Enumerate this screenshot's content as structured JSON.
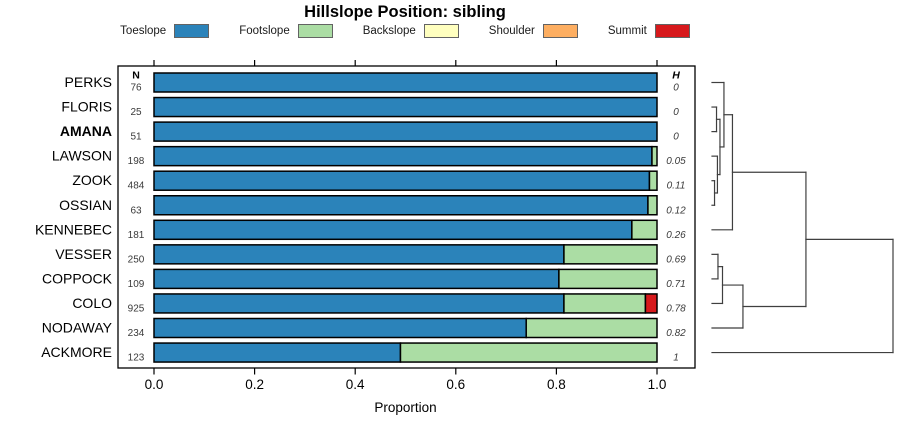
{
  "chart_data": {
    "type": "bar",
    "variant": "horizontal-stacked-proportion",
    "title": "Hillslope Position: sibling",
    "xlabel": "Proportion",
    "xlim": [
      0,
      1
    ],
    "xticks": [
      0.0,
      0.2,
      0.4,
      0.6,
      0.8,
      1.0
    ],
    "xtick_labels": [
      "0.0",
      "0.2",
      "0.4",
      "0.6",
      "0.8",
      "1.0"
    ],
    "grid": "off",
    "legend": {
      "position": "top",
      "entries": [
        {
          "label": "Toeslope",
          "color": "#2b83ba"
        },
        {
          "label": "Footslope",
          "color": "#abdda4"
        },
        {
          "label": "Backslope",
          "color": "#ffffbf"
        },
        {
          "label": "Shoulder",
          "color": "#fdae61"
        },
        {
          "label": "Summit",
          "color": "#d7191c"
        }
      ]
    },
    "columns": {
      "n_header": "N",
      "h_header": "H"
    },
    "rows": [
      {
        "label": "PERKS",
        "bold": false,
        "n": "76",
        "h": "0",
        "values": [
          1.0,
          0,
          0,
          0,
          0
        ]
      },
      {
        "label": "FLORIS",
        "bold": false,
        "n": "25",
        "h": "0",
        "values": [
          1.0,
          0,
          0,
          0,
          0
        ]
      },
      {
        "label": "AMANA",
        "bold": true,
        "n": "51",
        "h": "0",
        "values": [
          1.0,
          0,
          0,
          0,
          0
        ]
      },
      {
        "label": "LAWSON",
        "bold": false,
        "n": "198",
        "h": "0.05",
        "values": [
          0.99,
          0.01,
          0,
          0,
          0
        ]
      },
      {
        "label": "ZOOK",
        "bold": false,
        "n": "484",
        "h": "0.11",
        "values": [
          0.985,
          0.015,
          0,
          0,
          0
        ]
      },
      {
        "label": "OSSIAN",
        "bold": false,
        "n": "63",
        "h": "0.12",
        "values": [
          0.982,
          0.018,
          0,
          0,
          0
        ]
      },
      {
        "label": "KENNEBEC",
        "bold": false,
        "n": "181",
        "h": "0.26",
        "values": [
          0.95,
          0.05,
          0,
          0,
          0
        ]
      },
      {
        "label": "VESSER",
        "bold": false,
        "n": "250",
        "h": "0.69",
        "values": [
          0.815,
          0.185,
          0,
          0,
          0
        ]
      },
      {
        "label": "COPPOCK",
        "bold": false,
        "n": "109",
        "h": "0.71",
        "values": [
          0.805,
          0.195,
          0,
          0,
          0
        ]
      },
      {
        "label": "COLO",
        "bold": false,
        "n": "925",
        "h": "0.78",
        "values": [
          0.815,
          0.162,
          0,
          0,
          0.023
        ]
      },
      {
        "label": "NODAWAY",
        "bold": false,
        "n": "234",
        "h": "0.82",
        "values": [
          0.74,
          0.26,
          0,
          0,
          0
        ]
      },
      {
        "label": "ACKMORE",
        "bold": false,
        "n": "123",
        "h": "1",
        "values": [
          0.49,
          0.51,
          0,
          0,
          0
        ]
      }
    ],
    "dendrogram": {
      "side": "right",
      "leaf_order": [
        "PERKS",
        "FLORIS",
        "AMANA",
        "LAWSON",
        "ZOOK",
        "OSSIAN",
        "KENNEBEC",
        "VESSER",
        "COPPOCK",
        "COLO",
        "NODAWAY",
        "ACKMORE"
      ],
      "merges": [
        {
          "id": "n1",
          "a": "FLORIS",
          "b": "AMANA",
          "h": 0.025
        },
        {
          "id": "m0",
          "a": "ZOOK",
          "b": "OSSIAN",
          "h": 0.014
        },
        {
          "id": "m1",
          "a": "LAWSON",
          "b": "m0",
          "h": 0.03
        },
        {
          "id": "n2",
          "a": "n1",
          "b": "m1",
          "h": 0.044
        },
        {
          "id": "n3",
          "a": "PERKS",
          "b": "n2",
          "h": 0.066
        },
        {
          "id": "T",
          "a": "n3",
          "b": "KENNEBEC",
          "h": 0.113
        },
        {
          "id": "b0",
          "a": "VESSER",
          "b": "COPPOCK",
          "h": 0.033
        },
        {
          "id": "b1",
          "a": "b0",
          "b": "COLO",
          "h": 0.058
        },
        {
          "id": "b2",
          "a": "b1",
          "b": "NODAWAY",
          "h": 0.171
        },
        {
          "id": "R1",
          "a": "T",
          "b": "b2",
          "h": 0.519
        },
        {
          "id": "root",
          "a": "R1",
          "b": "ACKMORE",
          "h": 1.0
        }
      ]
    },
    "colors": {
      "bar_outline": "#000000",
      "box_outline": "#000000",
      "dendrogram_line": "#3f3f3f",
      "count_text": "#3a3a3a",
      "label_text": "#000000"
    }
  }
}
